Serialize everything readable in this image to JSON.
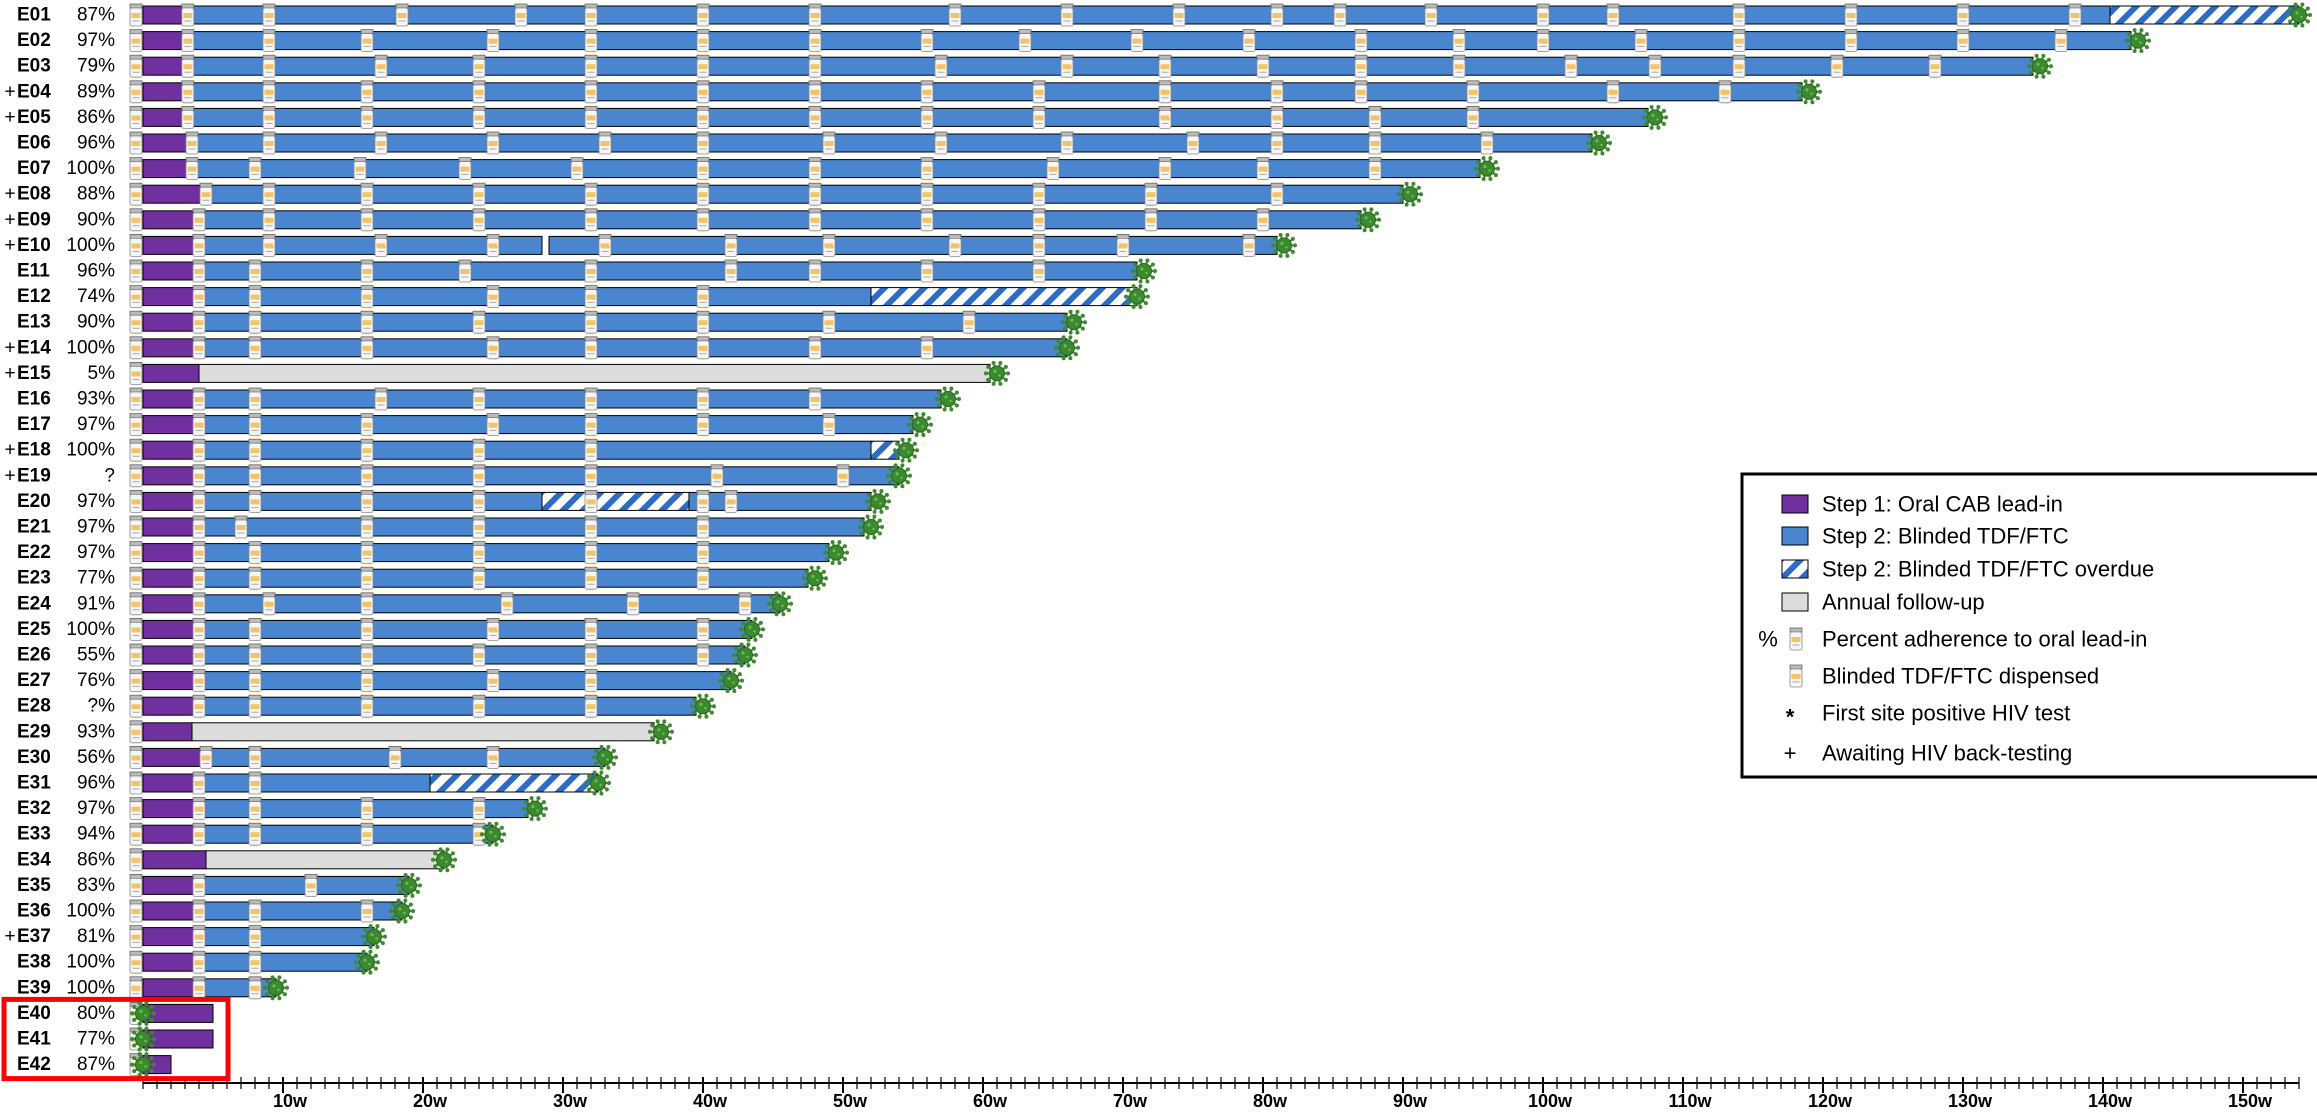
{
  "chart_data": {
    "type": "bar",
    "xlim": [
      0,
      154
    ],
    "x_unit_suffix": "w",
    "x_tick_labels": [
      "10w",
      "20w",
      "30w",
      "40w",
      "50w",
      "60w",
      "70w",
      "80w",
      "90w",
      "100w",
      "110w",
      "120w",
      "130w",
      "140w",
      "150w"
    ],
    "x_tick_values": [
      10,
      20,
      30,
      40,
      50,
      60,
      70,
      80,
      90,
      100,
      110,
      120,
      130,
      140,
      150
    ],
    "highlight_box_participants": [
      "E40",
      "E41",
      "E42"
    ],
    "colors": {
      "lead_in": "#7030a0",
      "blinded": "#4a86cf",
      "overdue_stripe": "#2e6bc4",
      "annual": "#dcdcdc",
      "virus": "#3c8a2e",
      "highlight": "#ff0000"
    },
    "legend": {
      "placement": "right",
      "items": [
        {
          "symbol": "lead-in-swatch",
          "label": "Step 1: Oral CAB lead-in"
        },
        {
          "symbol": "blinded-swatch",
          "label": "Step 2: Blinded TDF/FTC"
        },
        {
          "symbol": "overdue-swatch",
          "label": "Step 2: Blinded TDF/FTC overdue"
        },
        {
          "symbol": "annual-swatch",
          "label": "Annual follow-up"
        },
        {
          "symbol": "percent-pill-icon",
          "prefix": "%",
          "label": "Percent adherence to oral lead-in"
        },
        {
          "symbol": "pill-bottle-icon",
          "label": "Blinded TDF/FTC dispensed"
        },
        {
          "symbol": "asterisk-icon",
          "prefix": "*",
          "label": "First site positive HIV test"
        },
        {
          "symbol": "cross-icon",
          "prefix": "+",
          "label": "Awaiting HIV back-testing"
        }
      ]
    },
    "participants": [
      {
        "id": "E01",
        "adherence": "87%",
        "awaiting": false,
        "lead_in": [
          0,
          3.2
        ],
        "blinded": [
          [
            3.2,
            140.5
          ]
        ],
        "overdue": [
          [
            140.5,
            154
          ]
        ],
        "annual": [],
        "end": 154,
        "dispensed": [
          9,
          18.5,
          27,
          32,
          40,
          48,
          58,
          66,
          74,
          81,
          85.5,
          92,
          100,
          105,
          114,
          122,
          130,
          138
        ]
      },
      {
        "id": "E02",
        "adherence": "97%",
        "awaiting": false,
        "lead_in": [
          0,
          3.2
        ],
        "blinded": [
          [
            3.2,
            142
          ]
        ],
        "overdue": [],
        "annual": [],
        "end": 142.5,
        "dispensed": [
          9,
          16,
          25,
          32,
          40,
          48,
          56,
          63,
          71,
          79,
          87,
          94,
          100,
          107,
          114,
          122,
          130,
          137
        ]
      },
      {
        "id": "E03",
        "adherence": "79%",
        "awaiting": false,
        "lead_in": [
          0,
          3.2
        ],
        "blinded": [
          [
            3.2,
            135
          ]
        ],
        "overdue": [],
        "annual": [],
        "end": 135.5,
        "dispensed": [
          9,
          17,
          24,
          32,
          40,
          48,
          57,
          66,
          73,
          80,
          87,
          94,
          102,
          108,
          114,
          121,
          128
        ]
      },
      {
        "id": "E04",
        "adherence": "89%",
        "awaiting": true,
        "lead_in": [
          0,
          3.2
        ],
        "blinded": [
          [
            3.2,
            118.5
          ]
        ],
        "overdue": [],
        "annual": [],
        "end": 119,
        "dispensed": [
          9,
          16,
          24,
          32,
          40,
          48,
          56,
          64,
          73,
          81,
          87,
          95,
          105,
          113
        ]
      },
      {
        "id": "E05",
        "adherence": "86%",
        "awaiting": true,
        "lead_in": [
          0,
          3.2
        ],
        "blinded": [
          [
            3.2,
            107.5
          ]
        ],
        "overdue": [],
        "annual": [],
        "end": 108,
        "dispensed": [
          9,
          16,
          24,
          32,
          40,
          48,
          56,
          64,
          73,
          81,
          88,
          95
        ]
      },
      {
        "id": "E06",
        "adherence": "96%",
        "awaiting": false,
        "lead_in": [
          0,
          3.5
        ],
        "blinded": [
          [
            3.5,
            103.5
          ]
        ],
        "overdue": [],
        "annual": [],
        "end": 104,
        "dispensed": [
          9,
          17,
          25,
          33,
          40,
          49,
          57,
          66,
          75,
          81,
          88,
          96
        ]
      },
      {
        "id": "E07",
        "adherence": "100%",
        "awaiting": false,
        "lead_in": [
          0,
          3.5
        ],
        "blinded": [
          [
            3.5,
            95.5
          ]
        ],
        "overdue": [],
        "annual": [],
        "end": 96,
        "dispensed": [
          8,
          15.5,
          23,
          31,
          40,
          48,
          56,
          65,
          73,
          80,
          88
        ]
      },
      {
        "id": "E08",
        "adherence": "88%",
        "awaiting": true,
        "lead_in": [
          0,
          4.5
        ],
        "blinded": [
          [
            4.5,
            90
          ]
        ],
        "overdue": [],
        "annual": [],
        "end": 90.5,
        "dispensed": [
          9,
          16,
          24,
          32,
          40,
          48,
          56,
          64,
          72,
          81
        ]
      },
      {
        "id": "E09",
        "adherence": "90%",
        "awaiting": true,
        "lead_in": [
          0,
          4
        ],
        "blinded": [
          [
            4,
            87
          ]
        ],
        "overdue": [],
        "annual": [],
        "end": 87.5,
        "dispensed": [
          9,
          16,
          24,
          32,
          40,
          48,
          56,
          64,
          72,
          80
        ]
      },
      {
        "id": "E10",
        "adherence": "100%",
        "awaiting": true,
        "lead_in": [
          0,
          4
        ],
        "blinded": [
          [
            4,
            28.5
          ],
          [
            29,
            81
          ]
        ],
        "overdue": [],
        "annual": [],
        "end": 81.5,
        "dispensed": [
          9,
          17,
          25,
          33,
          42,
          49,
          58,
          64,
          70,
          79
        ]
      },
      {
        "id": "E11",
        "adherence": "96%",
        "awaiting": false,
        "lead_in": [
          0,
          4
        ],
        "blinded": [
          [
            4,
            71
          ]
        ],
        "overdue": [],
        "annual": [],
        "end": 71.5,
        "dispensed": [
          8,
          16,
          23,
          32,
          42,
          48,
          56,
          64
        ]
      },
      {
        "id": "E12",
        "adherence": "74%",
        "awaiting": false,
        "lead_in": [
          0,
          4
        ],
        "blinded": [
          [
            4,
            52
          ]
        ],
        "overdue": [
          [
            52,
            71
          ]
        ],
        "annual": [],
        "end": 71,
        "dispensed": [
          8,
          16,
          25,
          32,
          40
        ]
      },
      {
        "id": "E13",
        "adherence": "90%",
        "awaiting": false,
        "lead_in": [
          0,
          4
        ],
        "blinded": [
          [
            4,
            66
          ]
        ],
        "overdue": [],
        "annual": [],
        "end": 66.5,
        "dispensed": [
          8,
          16,
          24,
          32,
          40,
          49,
          59
        ]
      },
      {
        "id": "E14",
        "adherence": "100%",
        "awaiting": true,
        "lead_in": [
          0,
          4
        ],
        "blinded": [
          [
            4,
            66
          ]
        ],
        "overdue": [],
        "annual": [],
        "end": 66,
        "dispensed": [
          8,
          16,
          25,
          32,
          40,
          48,
          56
        ]
      },
      {
        "id": "E15",
        "adherence": "5%",
        "awaiting": true,
        "lead_in": [
          0,
          4
        ],
        "blinded": [],
        "overdue": [],
        "annual": [
          [
            4,
            60.5
          ]
        ],
        "end": 61,
        "dispensed": []
      },
      {
        "id": "E16",
        "adherence": "93%",
        "awaiting": false,
        "lead_in": [
          0,
          4
        ],
        "blinded": [
          [
            4,
            57
          ]
        ],
        "overdue": [],
        "annual": [],
        "end": 57.5,
        "dispensed": [
          8,
          17,
          24,
          32,
          40,
          48
        ]
      },
      {
        "id": "E17",
        "adherence": "97%",
        "awaiting": false,
        "lead_in": [
          0,
          4
        ],
        "blinded": [
          [
            4,
            55
          ]
        ],
        "overdue": [],
        "annual": [],
        "end": 55.5,
        "dispensed": [
          8,
          16,
          25,
          32,
          40,
          49
        ]
      },
      {
        "id": "E18",
        "adherence": "100%",
        "awaiting": true,
        "lead_in": [
          0,
          4
        ],
        "blinded": [
          [
            4,
            52
          ]
        ],
        "overdue": [
          [
            52,
            54
          ]
        ],
        "annual": [],
        "end": 54.5,
        "dispensed": [
          8,
          16,
          24,
          32
        ]
      },
      {
        "id": "E19",
        "adherence": "?",
        "awaiting": true,
        "lead_in": [
          0,
          4
        ],
        "blinded": [
          [
            4,
            54
          ]
        ],
        "overdue": [],
        "annual": [],
        "end": 54,
        "dispensed": [
          8,
          16,
          24,
          32,
          41,
          50
        ]
      },
      {
        "id": "E20",
        "adherence": "97%",
        "awaiting": false,
        "lead_in": [
          0,
          4
        ],
        "blinded": [
          [
            4,
            28.5
          ],
          [
            39,
            52
          ]
        ],
        "overdue": [
          [
            28.5,
            39
          ]
        ],
        "annual": [],
        "end": 52.5,
        "dispensed": [
          8,
          16,
          24,
          32,
          40,
          42
        ]
      },
      {
        "id": "E21",
        "adherence": "97%",
        "awaiting": false,
        "lead_in": [
          0,
          4
        ],
        "blinded": [
          [
            4,
            51.5
          ]
        ],
        "overdue": [],
        "annual": [],
        "end": 52,
        "dispensed": [
          7,
          16,
          24,
          32,
          40
        ]
      },
      {
        "id": "E22",
        "adherence": "97%",
        "awaiting": false,
        "lead_in": [
          0,
          4
        ],
        "blinded": [
          [
            4,
            49
          ]
        ],
        "overdue": [],
        "annual": [],
        "end": 49.5,
        "dispensed": [
          8,
          16,
          24,
          32,
          40
        ]
      },
      {
        "id": "E23",
        "adherence": "77%",
        "awaiting": false,
        "lead_in": [
          0,
          4
        ],
        "blinded": [
          [
            4,
            47.5
          ]
        ],
        "overdue": [],
        "annual": [],
        "end": 48,
        "dispensed": [
          8,
          16,
          24,
          32,
          40
        ]
      },
      {
        "id": "E24",
        "adherence": "91%",
        "awaiting": false,
        "lead_in": [
          0,
          4
        ],
        "blinded": [
          [
            4,
            45.5
          ]
        ],
        "overdue": [],
        "annual": [],
        "end": 45.5,
        "dispensed": [
          9,
          16,
          26,
          35,
          43
        ]
      },
      {
        "id": "E25",
        "adherence": "100%",
        "awaiting": false,
        "lead_in": [
          0,
          4
        ],
        "blinded": [
          [
            4,
            43.5
          ]
        ],
        "overdue": [],
        "annual": [],
        "end": 43.5,
        "dispensed": [
          8,
          16,
          25,
          32,
          40
        ]
      },
      {
        "id": "E26",
        "adherence": "55%",
        "awaiting": false,
        "lead_in": [
          0,
          4
        ],
        "blinded": [
          [
            4,
            43
          ]
        ],
        "overdue": [],
        "annual": [],
        "end": 43,
        "dispensed": [
          8,
          16,
          24,
          32,
          40
        ]
      },
      {
        "id": "E27",
        "adherence": "76%",
        "awaiting": false,
        "lead_in": [
          0,
          4
        ],
        "blinded": [
          [
            4,
            42
          ]
        ],
        "overdue": [],
        "annual": [],
        "end": 42,
        "dispensed": [
          8,
          16,
          25,
          32
        ]
      },
      {
        "id": "E28",
        "adherence": "?%",
        "awaiting": false,
        "lead_in": [
          0,
          4
        ],
        "blinded": [
          [
            4,
            39.5
          ]
        ],
        "overdue": [],
        "annual": [],
        "end": 40,
        "dispensed": [
          8,
          16,
          24,
          32
        ]
      },
      {
        "id": "E29",
        "adherence": "93%",
        "awaiting": false,
        "lead_in": [
          0,
          3.5
        ],
        "blinded": [],
        "overdue": [],
        "annual": [
          [
            3.5,
            36.5
          ]
        ],
        "end": 37,
        "dispensed": []
      },
      {
        "id": "E30",
        "adherence": "56%",
        "awaiting": false,
        "lead_in": [
          0,
          4.5
        ],
        "blinded": [
          [
            4.5,
            33
          ]
        ],
        "overdue": [],
        "annual": [],
        "end": 33,
        "dispensed": [
          8,
          18,
          25
        ]
      },
      {
        "id": "E31",
        "adherence": "96%",
        "awaiting": false,
        "lead_in": [
          0,
          4
        ],
        "blinded": [
          [
            4,
            20.5
          ]
        ],
        "overdue": [
          [
            20.5,
            32.5
          ]
        ],
        "annual": [],
        "end": 32.5,
        "dispensed": [
          8
        ]
      },
      {
        "id": "E32",
        "adherence": "97%",
        "awaiting": false,
        "lead_in": [
          0,
          4
        ],
        "blinded": [
          [
            4,
            27.5
          ]
        ],
        "overdue": [],
        "annual": [],
        "end": 28,
        "dispensed": [
          8,
          16,
          24
        ]
      },
      {
        "id": "E33",
        "adherence": "94%",
        "awaiting": false,
        "lead_in": [
          0,
          4
        ],
        "blinded": [
          [
            4,
            25
          ]
        ],
        "overdue": [],
        "annual": [],
        "end": 25,
        "dispensed": [
          8,
          16,
          24
        ]
      },
      {
        "id": "E34",
        "adherence": "86%",
        "awaiting": false,
        "lead_in": [
          0,
          4.5
        ],
        "blinded": [],
        "overdue": [],
        "annual": [
          [
            4.5,
            21.5
          ]
        ],
        "end": 21.5,
        "dispensed": []
      },
      {
        "id": "E35",
        "adherence": "83%",
        "awaiting": false,
        "lead_in": [
          0,
          4
        ],
        "blinded": [
          [
            4,
            19
          ]
        ],
        "overdue": [],
        "annual": [],
        "end": 19,
        "dispensed": [
          12
        ]
      },
      {
        "id": "E36",
        "adherence": "100%",
        "awaiting": false,
        "lead_in": [
          0,
          4
        ],
        "blinded": [
          [
            4,
            18.5
          ]
        ],
        "overdue": [],
        "annual": [],
        "end": 18.5,
        "dispensed": [
          8,
          16
        ]
      },
      {
        "id": "E37",
        "adherence": "81%",
        "awaiting": true,
        "lead_in": [
          0,
          4
        ],
        "blinded": [
          [
            4,
            16.5
          ]
        ],
        "overdue": [],
        "annual": [],
        "end": 16.5,
        "dispensed": [
          8
        ]
      },
      {
        "id": "E38",
        "adherence": "100%",
        "awaiting": false,
        "lead_in": [
          0,
          4
        ],
        "blinded": [
          [
            4,
            16
          ]
        ],
        "overdue": [],
        "annual": [],
        "end": 16,
        "dispensed": [
          8
        ]
      },
      {
        "id": "E39",
        "adherence": "100%",
        "awaiting": false,
        "lead_in": [
          0,
          4
        ],
        "blinded": [
          [
            4,
            9.5
          ]
        ],
        "overdue": [],
        "annual": [],
        "end": 9.5,
        "dispensed": [
          8
        ]
      },
      {
        "id": "E40",
        "adherence": "80%",
        "awaiting": false,
        "lead_in": [
          0,
          5
        ],
        "blinded": [],
        "overdue": [],
        "annual": [],
        "end": 0,
        "dispensed": []
      },
      {
        "id": "E41",
        "adherence": "77%",
        "awaiting": false,
        "lead_in": [
          0,
          5
        ],
        "blinded": [],
        "overdue": [],
        "annual": [],
        "end": 0,
        "dispensed": []
      },
      {
        "id": "E42",
        "adherence": "87%",
        "awaiting": false,
        "lead_in": [
          0,
          2
        ],
        "blinded": [],
        "overdue": [],
        "annual": [],
        "end": 0,
        "dispensed": []
      }
    ]
  }
}
